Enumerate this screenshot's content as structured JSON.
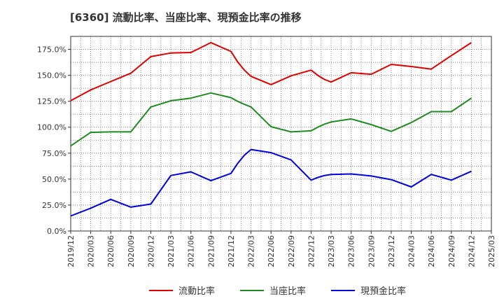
{
  "chart_data": {
    "type": "line",
    "title": "[6360]  流動比率、当座比率、現預金比率の推移",
    "xlabel": "",
    "ylabel": "",
    "ylim": [
      0,
      187.5
    ],
    "y_ticks": [
      "0.0%",
      "25.0%",
      "50.0%",
      "75.0%",
      "100.0%",
      "125.0%",
      "150.0%",
      "175.0%"
    ],
    "y_tick_values": [
      0,
      25,
      50,
      75,
      100,
      125,
      150,
      175
    ],
    "x_ticks": [
      "2019/12",
      "2020/03",
      "2020/06",
      "2020/09",
      "2020/12",
      "2021/03",
      "2021/06",
      "2021/09",
      "2021/12",
      "2022/03",
      "2022/06",
      "2022/09",
      "2022/12",
      "2023/03",
      "2023/06",
      "2023/09",
      "2023/12",
      "2024/03",
      "2024/06",
      "2024/09",
      "2024/12",
      "2025/03"
    ],
    "grid": true,
    "legend_position": "bottom",
    "series": [
      {
        "name": "流動比率",
        "color": "#dd0000",
        "points": [
          [
            0,
            125.5
          ],
          [
            1,
            136
          ],
          [
            2,
            144
          ],
          [
            3,
            152
          ],
          [
            4,
            168
          ],
          [
            5,
            171.5
          ],
          [
            6,
            172
          ],
          [
            7,
            181.5
          ],
          [
            8,
            173
          ],
          [
            8.33,
            163
          ],
          [
            8.67,
            155
          ],
          [
            9,
            149
          ],
          [
            10,
            141
          ],
          [
            11,
            149.5
          ],
          [
            12,
            155
          ],
          [
            12.33,
            150
          ],
          [
            12.67,
            146
          ],
          [
            13,
            143.5
          ],
          [
            14,
            152.5
          ],
          [
            15,
            151
          ],
          [
            16,
            160.5
          ],
          [
            17,
            158.5
          ],
          [
            18,
            156
          ],
          [
            19,
            169
          ],
          [
            20,
            181.5
          ]
        ]
      },
      {
        "name": "当座比率",
        "color": "#228822",
        "points": [
          [
            0,
            82
          ],
          [
            1,
            95
          ],
          [
            2,
            95.5
          ],
          [
            3,
            95.5
          ],
          [
            4,
            119.5
          ],
          [
            5,
            125.5
          ],
          [
            6,
            128
          ],
          [
            7,
            133
          ],
          [
            8,
            128.5
          ],
          [
            8.33,
            125
          ],
          [
            8.67,
            122
          ],
          [
            9,
            119.5
          ],
          [
            10,
            100.5
          ],
          [
            11,
            95.5
          ],
          [
            12,
            96.5
          ],
          [
            12.33,
            100
          ],
          [
            12.67,
            103
          ],
          [
            13,
            105
          ],
          [
            14,
            108
          ],
          [
            15,
            102.5
          ],
          [
            16,
            96
          ],
          [
            17,
            104.5
          ],
          [
            18,
            115
          ],
          [
            19,
            115
          ],
          [
            20,
            128
          ]
        ]
      },
      {
        "name": "現預金比率",
        "color": "#0000dd",
        "points": [
          [
            0,
            14.5
          ],
          [
            1,
            22
          ],
          [
            2,
            30.5
          ],
          [
            3,
            23
          ],
          [
            4,
            26
          ],
          [
            5,
            53.5
          ],
          [
            6,
            57
          ],
          [
            7,
            48.5
          ],
          [
            8,
            55.5
          ],
          [
            8.33,
            65
          ],
          [
            8.67,
            73
          ],
          [
            9,
            78.5
          ],
          [
            10,
            75.5
          ],
          [
            11,
            68.5
          ],
          [
            12,
            49
          ],
          [
            12.33,
            51.5
          ],
          [
            12.67,
            53.5
          ],
          [
            13,
            54.5
          ],
          [
            14,
            55
          ],
          [
            15,
            53
          ],
          [
            16,
            49.5
          ],
          [
            17,
            42.5
          ],
          [
            18,
            54.5
          ],
          [
            19,
            49
          ],
          [
            20,
            57.5
          ]
        ]
      }
    ]
  }
}
